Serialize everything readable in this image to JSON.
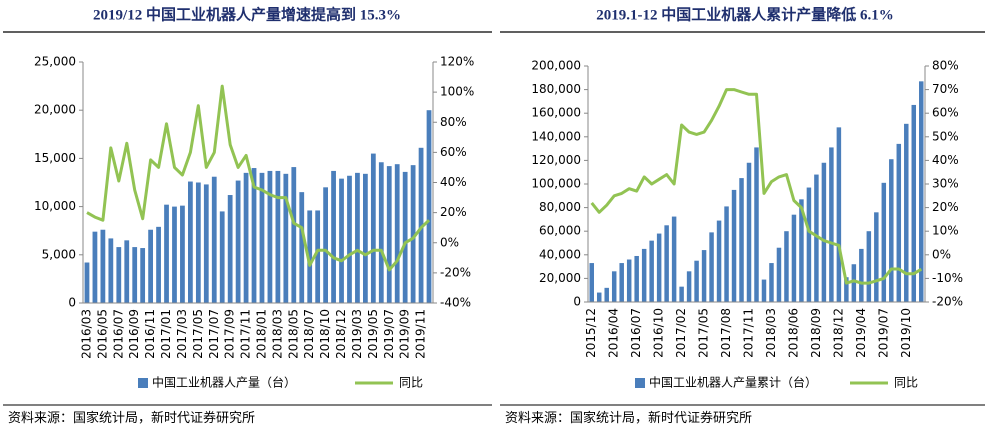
{
  "chart_data": [
    {
      "type": "combo",
      "title": "2019/12 中国工业机器人产量增速提高到 15.3%",
      "source": "资料来源：国家统计局，新时代证券研究所",
      "categories": [
        "2016/03",
        null,
        "2016/05",
        null,
        "2016/07",
        null,
        "2016/09",
        null,
        "2016/11",
        null,
        "2017/01",
        null,
        "2017/03",
        null,
        "2017/05",
        null,
        "2017/07",
        null,
        "2017/09",
        null,
        "2017/11",
        null,
        "2018/01",
        null,
        "2018/03",
        null,
        "2018/05",
        null,
        "2018/07",
        null,
        "2018/10",
        null,
        "2018/12",
        null,
        "2019/03",
        null,
        "2019/05",
        null,
        "2019/07",
        null,
        "2019/09",
        null,
        "2019/11",
        null
      ],
      "series": [
        {
          "name": "中国工业机器人产量（台）",
          "type": "bar",
          "color": "#4a7ebb",
          "values": [
            4200,
            7400,
            7600,
            6700,
            5800,
            6500,
            5800,
            5700,
            7600,
            7900,
            10200,
            10000,
            10100,
            12600,
            12500,
            12300,
            13100,
            9500,
            11200,
            12700,
            13500,
            14000,
            13500,
            13700,
            13700,
            13400,
            14100,
            11500,
            9600,
            9600,
            12000,
            13700,
            12900,
            13200,
            13500,
            13400,
            15500,
            14600,
            14200,
            14400,
            13600,
            14300,
            16100,
            20000
          ]
        },
        {
          "name": "同比",
          "type": "line",
          "axis": "y2",
          "color": "#92c353",
          "values": [
            20,
            17,
            15,
            63,
            41,
            66,
            35,
            16,
            55,
            50,
            79,
            50,
            45,
            60,
            91,
            50,
            60,
            104,
            65,
            50,
            58,
            37,
            35,
            32,
            30,
            30,
            13,
            10,
            -15,
            -5,
            -5,
            -10,
            -12,
            -8,
            -5,
            -8,
            -5,
            -5,
            -18,
            -12,
            0,
            3,
            10,
            15
          ]
        }
      ],
      "ylim": [
        0,
        25000
      ],
      "yticks": [
        0,
        {
          "value": 5000,
          "label": "5,000"
        },
        {
          "value": 10000,
          "label": "10,000"
        },
        {
          "value": 15000,
          "label": "15,000"
        },
        {
          "value": 20000,
          "label": "20,000"
        },
        {
          "value": 25000,
          "label": "25,000"
        }
      ],
      "y2lim": [
        -40,
        120
      ],
      "y2ticks": [
        {
          "value": -40,
          "label": "-40%"
        },
        {
          "value": -20,
          "label": "-20%"
        },
        {
          "value": 0,
          "label": "0%"
        },
        {
          "value": 20,
          "label": "20%"
        },
        {
          "value": 40,
          "label": "40%"
        },
        {
          "value": 60,
          "label": "60%"
        },
        {
          "value": 80,
          "label": "80%"
        },
        {
          "value": 100,
          "label": "100%"
        },
        {
          "value": 120,
          "label": "120%"
        }
      ]
    },
    {
      "type": "combo",
      "title": "2019.1-12 中国工业机器人累计产量降低 6.1%",
      "source": "资料来源：国家统计局，新时代证券研究所",
      "categories": [
        "2015/12",
        null,
        null,
        "2016/04",
        null,
        null,
        "2016/07",
        null,
        null,
        "2016/10",
        null,
        null,
        "2017/02",
        null,
        null,
        "2017/05",
        null,
        null,
        "2017/08",
        null,
        null,
        "2017/11",
        null,
        null,
        "2018/03",
        null,
        null,
        "2018/06",
        null,
        null,
        "2018/09",
        null,
        null,
        "2018/12",
        null,
        null,
        "2019/04",
        null,
        null,
        "2019/07",
        null,
        null,
        "2019/10",
        null,
        null
      ],
      "series": [
        {
          "name": "中国工业机器人产量累计（台）",
          "type": "bar",
          "color": "#4a7ebb",
          "values": [
            33000,
            8000,
            12000,
            26000,
            33000,
            36000,
            39000,
            45000,
            52000,
            58000,
            65000,
            72400,
            13000,
            26000,
            35000,
            44000,
            59000,
            69000,
            81000,
            95000,
            105000,
            118000,
            131000,
            19000,
            33000,
            46000,
            60000,
            74000,
            87000,
            97000,
            108000,
            118000,
            131000,
            148000,
            21000,
            32000,
            45000,
            60000,
            76000,
            101000,
            121000,
            134000,
            151000,
            167000,
            187000
          ]
        },
        {
          "name": "同比",
          "type": "line",
          "axis": "y2",
          "color": "#92c353",
          "values": [
            22,
            18,
            21,
            25,
            26,
            28,
            27,
            33,
            30,
            32,
            34,
            30,
            55,
            52,
            51,
            52,
            57,
            63,
            70,
            70,
            69,
            68,
            68,
            26,
            31,
            33,
            34,
            23,
            20,
            10,
            8,
            6,
            5,
            4,
            -12,
            -11,
            -12,
            -12,
            -11,
            -10,
            -6,
            -6,
            -8,
            -8,
            -6.1
          ]
        }
      ],
      "ylim": [
        0,
        200000
      ],
      "yticks": [
        0,
        {
          "value": 20000,
          "label": "20,000"
        },
        {
          "value": 40000,
          "label": "40,000"
        },
        {
          "value": 60000,
          "label": "60,000"
        },
        {
          "value": 80000,
          "label": "80,000"
        },
        {
          "value": 100000,
          "label": "100,000"
        },
        {
          "value": 120000,
          "label": "120,000"
        },
        {
          "value": 140000,
          "label": "140,000"
        },
        {
          "value": 160000,
          "label": "160,000"
        },
        {
          "value": 180000,
          "label": "180,000"
        },
        {
          "value": 200000,
          "label": "200,000"
        }
      ],
      "y2lim": [
        -20,
        80
      ],
      "y2ticks": [
        {
          "value": -20,
          "label": "-20%"
        },
        {
          "value": -10,
          "label": "-10%"
        },
        {
          "value": 0,
          "label": "0%"
        },
        {
          "value": 10,
          "label": "10%"
        },
        {
          "value": 20,
          "label": "20%"
        },
        {
          "value": 30,
          "label": "30%"
        },
        {
          "value": 40,
          "label": "40%"
        },
        {
          "value": 50,
          "label": "50%"
        },
        {
          "value": 60,
          "label": "60%"
        },
        {
          "value": 70,
          "label": "70%"
        },
        {
          "value": 80,
          "label": "80%"
        }
      ]
    }
  ]
}
